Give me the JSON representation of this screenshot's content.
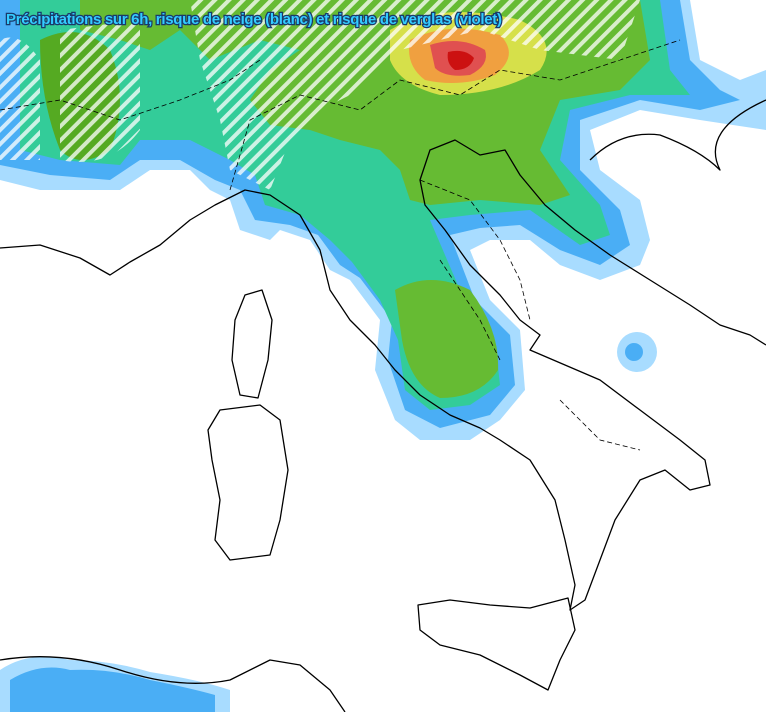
{
  "title": "Précipitations sur 6h, risque de neige (blanc) et risque de verglas (violet)"
}
